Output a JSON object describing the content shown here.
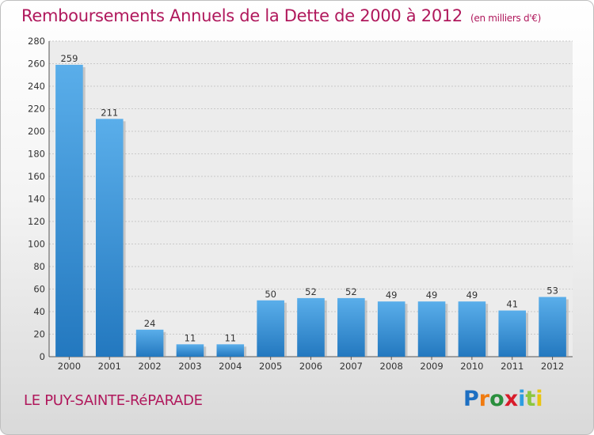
{
  "header": {
    "title": "Remboursements Annuels de la Dette de 2000 à 2012",
    "unit": "(en milliers d'€)"
  },
  "commune": "LE PUY-SAINTE-RéPARADE",
  "logo_text": "Proxiti",
  "colors": {
    "title": "#b0185c",
    "bar_light": "#5aaeea",
    "bar_dark": "#2378bf"
  },
  "chart_data": {
    "type": "bar",
    "title": "Remboursements Annuels de la Dette de 2000 à 2012",
    "categories": [
      "2000",
      "2001",
      "2002",
      "2003",
      "2004",
      "2005",
      "2006",
      "2007",
      "2008",
      "2009",
      "2010",
      "2011",
      "2012"
    ],
    "values": [
      259,
      211,
      24,
      11,
      11,
      50,
      52,
      52,
      49,
      49,
      49,
      41,
      53
    ],
    "ylim": [
      0,
      280
    ],
    "yticks": [
      0,
      20,
      40,
      60,
      80,
      100,
      120,
      140,
      160,
      180,
      200,
      220,
      240,
      260,
      280
    ],
    "grid": true,
    "xlabel": "",
    "ylabel": ""
  }
}
